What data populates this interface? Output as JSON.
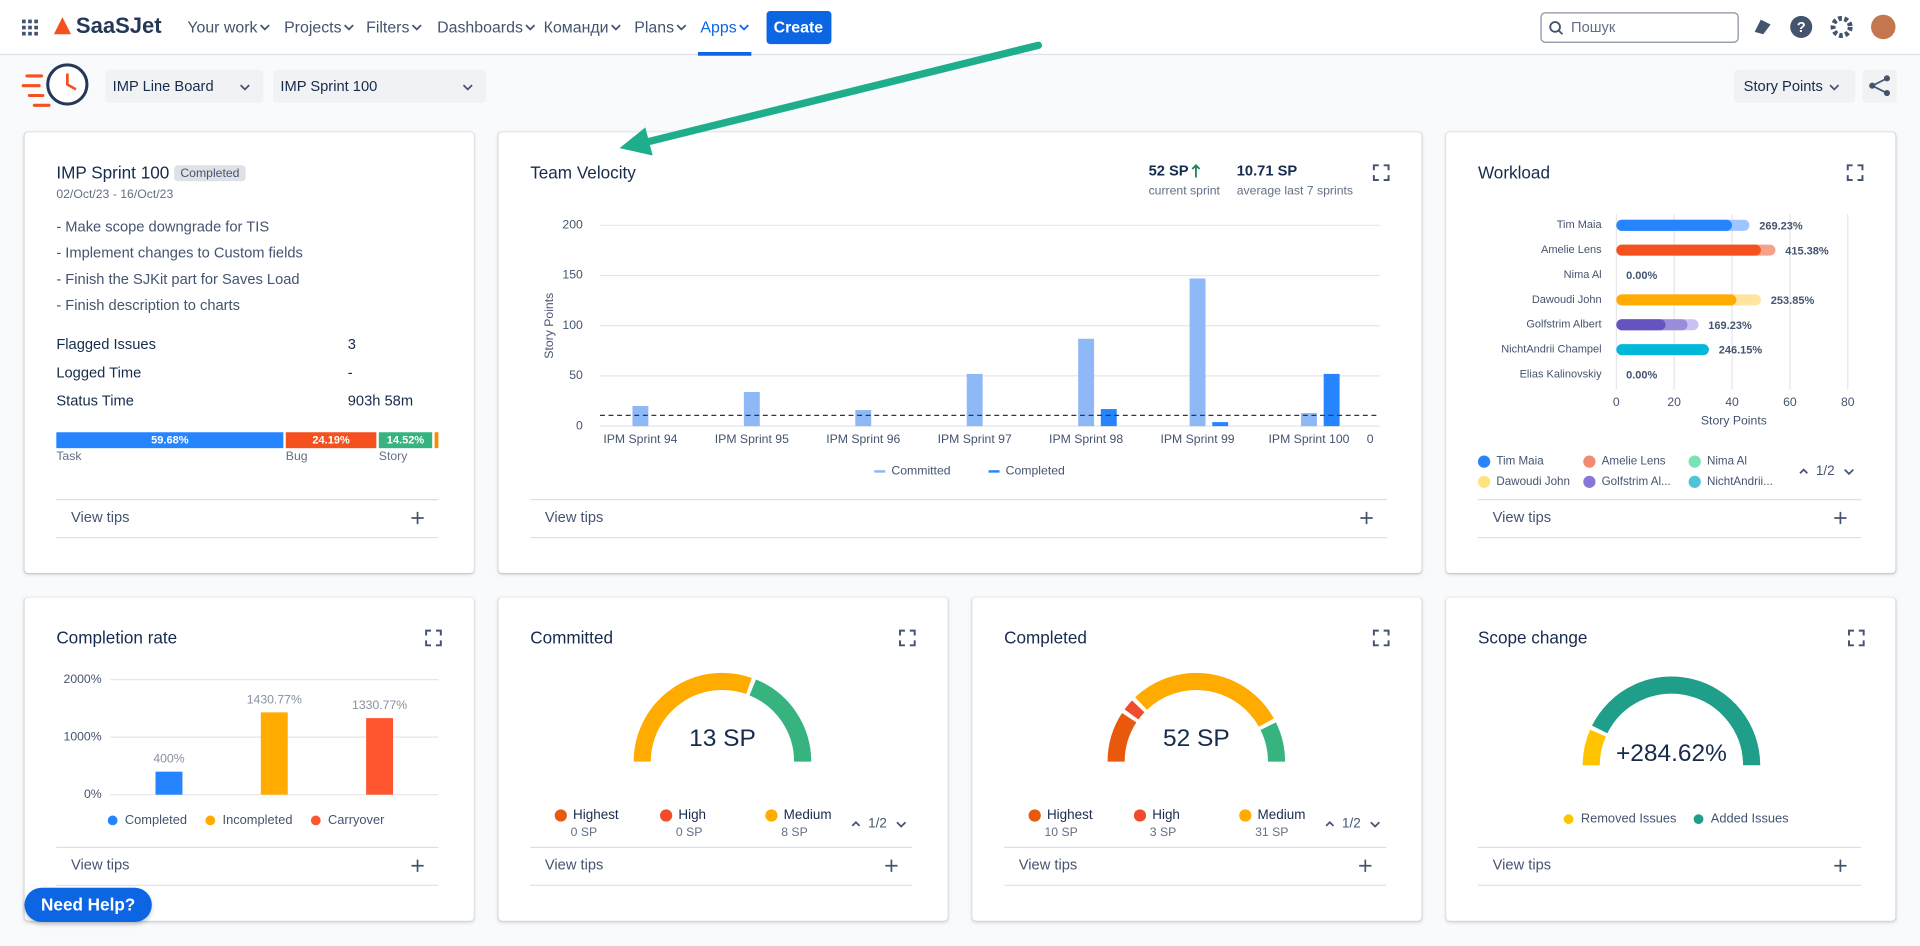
{
  "nav": {
    "logo": "SaaSJet",
    "items": [
      "Your work",
      "Projects",
      "Filters",
      "Dashboards",
      "Команди",
      "Plans",
      "Apps"
    ],
    "create": "Create",
    "search": "Пошук"
  },
  "toolbar": {
    "board": "IMP Line Board",
    "sprint": "IMP Sprint 100",
    "measure": "Story Points"
  },
  "sprint": {
    "title": "IMP Sprint 100",
    "status": "Completed",
    "dates": "02/Oct/23 - 16/Oct/23",
    "notes": [
      "- Make scope downgrade for TIS",
      "- Implement changes to Custom fields",
      "- Finish the SJKit part for Saves Load",
      "- Finish description to charts"
    ],
    "stats": [
      {
        "label": "Flagged Issues",
        "value": "3"
      },
      {
        "label": "Logged Time",
        "value": "-"
      },
      {
        "label": "Status Time",
        "value": "903h 58m"
      }
    ],
    "distribution": {
      "type": "stacked-bar",
      "categories": [
        "Task",
        "Bug",
        "Story",
        null
      ],
      "values": [
        59.68,
        24.19,
        14.52,
        1.61
      ],
      "value_labels": [
        "59.68%",
        "24.19%",
        "14.52%",
        null
      ],
      "colors": [
        "#2684ff",
        "#f4511e",
        "#36b37e",
        "#ff8b00"
      ]
    }
  },
  "velocity": {
    "title": "Team Velocity",
    "current_label": "52 SP",
    "current_caption": "current sprint",
    "average_label": "10.71 SP",
    "average_caption": "average last 7 sprints",
    "chart": {
      "type": "bar",
      "y_label": "Story Points",
      "categories": [
        "IPM Sprint 94",
        "IPM Sprint 95",
        "IPM Sprint 96",
        "IPM Sprint 97",
        "IPM Sprint 98",
        "IPM Sprint 99",
        "IPM Sprint 100"
      ],
      "series": [
        {
          "name": "Committed",
          "color": "#8fb8f6",
          "values": [
            20,
            34,
            16,
            52,
            87,
            147,
            13
          ]
        },
        {
          "name": "Completed",
          "color": "#2684ff",
          "values": [
            0,
            0,
            0,
            0,
            17,
            4,
            52
          ]
        }
      ],
      "average": 10.71,
      "ylim": [
        0,
        200
      ],
      "yticks": [
        0,
        50,
        100,
        150,
        200
      ],
      "y2lim": [
        0,
        1
      ],
      "y2ticks": [
        0
      ],
      "grid": true
    }
  },
  "workload": {
    "title": "Workload",
    "pager": "1/2",
    "chart": {
      "type": "hbar",
      "x_label": "Story Points",
      "xlim": [
        0,
        80
      ],
      "xticks": [
        0,
        20,
        40,
        60,
        80
      ],
      "grid": true,
      "rows": [
        {
          "name": "Tim Maia",
          "values": [
            40,
            46
          ],
          "colors": [
            "#2684ff",
            "#9ec5ff"
          ],
          "label": "269.23%"
        },
        {
          "name": "Amelie Lens",
          "values": [
            50,
            55
          ],
          "colors": [
            "#f4511e",
            "#f5a28c"
          ],
          "label": "415.38%"
        },
        {
          "name": "Nima Al",
          "values": [
            0
          ],
          "colors": [
            "#57d9a3"
          ],
          "label": "0.00%"
        },
        {
          "name": "Dawoudi John",
          "values": [
            41.5,
            50
          ],
          "colors": [
            "#ffab00",
            "#ffe59e"
          ],
          "label": "253.85%"
        },
        {
          "name": "Golfstrim Albert",
          "values": [
            17,
            24.6,
            28.4
          ],
          "colors": [
            "#6554c0",
            "#998dd9",
            "#c9c1f2"
          ],
          "label": "169.23%"
        },
        {
          "name": "NichtAndrii Champel",
          "values": [
            32
          ],
          "colors": [
            "#00b8d9"
          ],
          "label": "246.15%"
        },
        {
          "name": "Elias Kalinovskiy",
          "values": [
            0
          ],
          "colors": [
            "#8993a4"
          ],
          "label": "0.00%"
        }
      ],
      "legend": [
        {
          "label": "Tim Maia",
          "color": "#2684ff"
        },
        {
          "label": "Amelie Lens",
          "color": "#f28b74"
        },
        {
          "label": "Nima Al",
          "color": "#79e2b6"
        },
        {
          "label": "Dawoudi John",
          "color": "#ffe380"
        },
        {
          "label": "Golfstrim Al...",
          "color": "#8777d9"
        },
        {
          "label": "NichtAndrii...",
          "color": "#4fc3d9"
        }
      ]
    }
  },
  "completion": {
    "title": "Completion rate",
    "chart": {
      "type": "bar",
      "categories": [
        "Completed",
        "Incompleted",
        "Carryover"
      ],
      "values": [
        400,
        1430.77,
        1330.77
      ],
      "value_labels": [
        "400%",
        "1430.77%",
        "1330.77%"
      ],
      "colors": [
        "#2684ff",
        "#ffab00",
        "#ff5630"
      ],
      "ylim": [
        0,
        2000
      ],
      "yticks": [
        {
          "value": 0,
          "label": "0%"
        },
        {
          "value": 1000,
          "label": "1000%"
        },
        {
          "value": 2000,
          "label": "2000%"
        }
      ],
      "grid": true
    }
  },
  "committed": {
    "title": "Committed",
    "pager": "1/2",
    "chart": {
      "type": "gauge",
      "center_label": "13 SP",
      "categories": [
        "Highest",
        "High",
        "Medium",
        null
      ],
      "values": [
        0,
        0,
        8,
        5
      ],
      "value_labels": [
        "0 SP",
        "0 SP",
        "8 SP",
        null
      ],
      "colors": [
        "#e8590c",
        "#f04b2d",
        "#ffab00",
        "#36b37e"
      ]
    }
  },
  "completed": {
    "title": "Completed",
    "pager": "1/2",
    "chart": {
      "type": "gauge",
      "center_label": "52 SP",
      "categories": [
        "Highest",
        "High",
        "Medium",
        null
      ],
      "values": [
        10,
        3,
        31,
        8
      ],
      "value_labels": [
        "10 SP",
        "3 SP",
        "31 SP",
        null
      ],
      "colors": [
        "#e8590c",
        "#f04b2d",
        "#ffab00",
        "#36b37e"
      ]
    }
  },
  "scope": {
    "title": "Scope change",
    "chart": {
      "type": "gauge",
      "center_label": "+284.62%",
      "categories": [
        "Removed Issues",
        "Added Issues"
      ],
      "values": [
        6,
        37
      ],
      "colors": [
        "#ffc400",
        "#1f9e89"
      ]
    }
  },
  "tips": "View tips",
  "help": "Need Help?"
}
